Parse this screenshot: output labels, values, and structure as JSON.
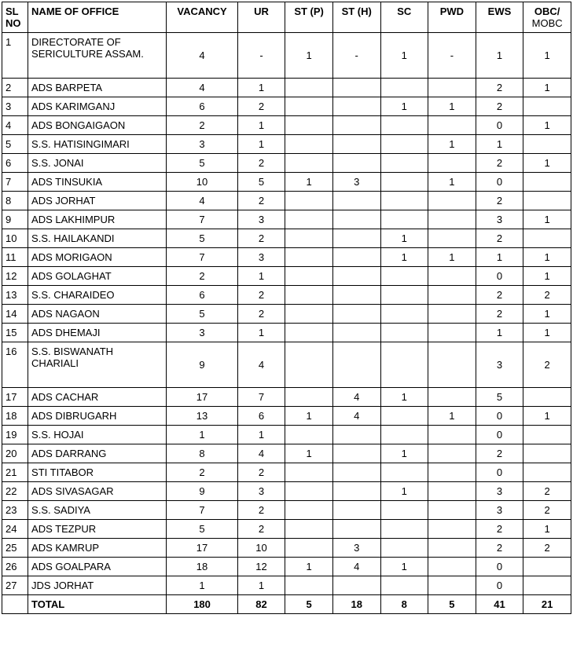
{
  "table": {
    "columns": [
      {
        "key": "sl",
        "label": "SL NO",
        "class": "col-sl",
        "align": "left"
      },
      {
        "key": "name",
        "label": "NAME OF OFFICE",
        "class": "col-name",
        "align": "left"
      },
      {
        "key": "vacancy",
        "label": "VACANCY",
        "class": "col-vac",
        "align": "center"
      },
      {
        "key": "ur",
        "label": "UR",
        "class": "col-ur",
        "align": "center"
      },
      {
        "key": "stp",
        "label": "ST (P)",
        "class": "col-stp",
        "align": "center"
      },
      {
        "key": "sth",
        "label": "ST (H)",
        "class": "col-sth",
        "align": "center"
      },
      {
        "key": "sc",
        "label": "SC",
        "class": "col-sc",
        "align": "center"
      },
      {
        "key": "pwd",
        "label": "PWD",
        "class": "col-pwd",
        "align": "center"
      },
      {
        "key": "ews",
        "label": "EWS",
        "class": "col-ews",
        "align": "center"
      },
      {
        "key": "obc",
        "label": "OBC/",
        "sub": "MOBC",
        "class": "col-obc",
        "align": "center"
      }
    ],
    "rows": [
      {
        "sl": "1",
        "name": "DIRECTORATE OF SERICULTURE ASSAM.",
        "vacancy": "4",
        "ur": "-",
        "stp": "1",
        "sth": "-",
        "sc": "1",
        "pwd": "-",
        "ews": "1",
        "obc": "1",
        "tall": true
      },
      {
        "sl": "2",
        "name": "ADS BARPETA",
        "vacancy": "4",
        "ur": "1",
        "stp": "",
        "sth": "",
        "sc": "",
        "pwd": "",
        "ews": "2",
        "obc": "1"
      },
      {
        "sl": "3",
        "name": "ADS KARIMGANJ",
        "vacancy": "6",
        "ur": "2",
        "stp": "",
        "sth": "",
        "sc": "1",
        "pwd": "1",
        "ews": "2",
        "obc": ""
      },
      {
        "sl": "4",
        "name": "ADS BONGAIGAON",
        "vacancy": "2",
        "ur": "1",
        "stp": "",
        "sth": "",
        "sc": "",
        "pwd": "",
        "ews": "0",
        "obc": "1"
      },
      {
        "sl": "5",
        "name": "S.S. HATISINGIMARI",
        "vacancy": "3",
        "ur": "1",
        "stp": "",
        "sth": "",
        "sc": "",
        "pwd": "1",
        "ews": "1",
        "obc": ""
      },
      {
        "sl": "6",
        "name": "S.S. JONAI",
        "vacancy": "5",
        "ur": "2",
        "stp": "",
        "sth": "",
        "sc": "",
        "pwd": "",
        "ews": "2",
        "obc": "1"
      },
      {
        "sl": "7",
        "name": "ADS TINSUKIA",
        "vacancy": "10",
        "ur": "5",
        "stp": "1",
        "sth": "3",
        "sc": "",
        "pwd": "1",
        "ews": "0",
        "obc": ""
      },
      {
        "sl": "8",
        "name": "ADS JORHAT",
        "vacancy": "4",
        "ur": "2",
        "stp": "",
        "sth": "",
        "sc": "",
        "pwd": "",
        "ews": "2",
        "obc": ""
      },
      {
        "sl": "9",
        "name": "ADS LAKHIMPUR",
        "vacancy": "7",
        "ur": "3",
        "stp": "",
        "sth": "",
        "sc": "",
        "pwd": "",
        "ews": "3",
        "obc": "1"
      },
      {
        "sl": "10",
        "name": "S.S. HAILAKANDI",
        "vacancy": "5",
        "ur": "2",
        "stp": "",
        "sth": "",
        "sc": "1",
        "pwd": "",
        "ews": "2",
        "obc": ""
      },
      {
        "sl": "11",
        "name": "ADS MORIGAON",
        "vacancy": "7",
        "ur": "3",
        "stp": "",
        "sth": "",
        "sc": "1",
        "pwd": "1",
        "ews": "1",
        "obc": "1"
      },
      {
        "sl": "12",
        "name": "ADS GOLAGHAT",
        "vacancy": "2",
        "ur": "1",
        "stp": "",
        "sth": "",
        "sc": "",
        "pwd": "",
        "ews": "0",
        "obc": "1"
      },
      {
        "sl": "13",
        "name": "S.S. CHARAIDEO",
        "vacancy": "6",
        "ur": "2",
        "stp": "",
        "sth": "",
        "sc": "",
        "pwd": "",
        "ews": "2",
        "obc": "2"
      },
      {
        "sl": "14",
        "name": "ADS NAGAON",
        "vacancy": "5",
        "ur": "2",
        "stp": "",
        "sth": "",
        "sc": "",
        "pwd": "",
        "ews": "2",
        "obc": "1"
      },
      {
        "sl": "15",
        "name": "ADS DHEMAJI",
        "vacancy": "3",
        "ur": "1",
        "stp": "",
        "sth": "",
        "sc": "",
        "pwd": "",
        "ews": "1",
        "obc": "1"
      },
      {
        "sl": "16",
        "name": "S.S. BISWANATH CHARIALI",
        "vacancy": "9",
        "ur": "4",
        "stp": "",
        "sth": "",
        "sc": "",
        "pwd": "",
        "ews": "3",
        "obc": "2",
        "tall": true
      },
      {
        "sl": "17",
        "name": "ADS CACHAR",
        "vacancy": "17",
        "ur": "7",
        "stp": "",
        "sth": "4",
        "sc": "1",
        "pwd": "",
        "ews": "5",
        "obc": ""
      },
      {
        "sl": "18",
        "name": "ADS DIBRUGARH",
        "vacancy": "13",
        "ur": "6",
        "stp": "1",
        "sth": "4",
        "sc": "",
        "pwd": "1",
        "ews": "0",
        "obc": "1"
      },
      {
        "sl": "19",
        "name": "S.S. HOJAI",
        "vacancy": "1",
        "ur": "1",
        "stp": "",
        "sth": "",
        "sc": "",
        "pwd": "",
        "ews": "0",
        "obc": ""
      },
      {
        "sl": "20",
        "name": "ADS DARRANG",
        "vacancy": "8",
        "ur": "4",
        "stp": "1",
        "sth": "",
        "sc": "1",
        "pwd": "",
        "ews": "2",
        "obc": ""
      },
      {
        "sl": "21",
        "name": "STI TITABOR",
        "vacancy": "2",
        "ur": "2",
        "stp": "",
        "sth": "",
        "sc": "",
        "pwd": "",
        "ews": "0",
        "obc": ""
      },
      {
        "sl": "22",
        "name": "ADS SIVASAGAR",
        "vacancy": "9",
        "ur": "3",
        "stp": "",
        "sth": "",
        "sc": "1",
        "pwd": "",
        "ews": "3",
        "obc": "2"
      },
      {
        "sl": "23",
        "name": "S.S. SADIYA",
        "vacancy": "7",
        "ur": "2",
        "stp": "",
        "sth": "",
        "sc": "",
        "pwd": "",
        "ews": "3",
        "obc": "2"
      },
      {
        "sl": "24",
        "name": "ADS TEZPUR",
        "vacancy": "5",
        "ur": "2",
        "stp": "",
        "sth": "",
        "sc": "",
        "pwd": "",
        "ews": "2",
        "obc": "1"
      },
      {
        "sl": "25",
        "name": "ADS KAMRUP",
        "vacancy": "17",
        "ur": "10",
        "stp": "",
        "sth": "3",
        "sc": "",
        "pwd": "",
        "ews": "2",
        "obc": "2"
      },
      {
        "sl": "26",
        "name": "ADS GOALPARA",
        "vacancy": "18",
        "ur": "12",
        "stp": "1",
        "sth": "4",
        "sc": "1",
        "pwd": "",
        "ews": "0",
        "obc": ""
      },
      {
        "sl": "27",
        "name": "JDS JORHAT",
        "vacancy": "1",
        "ur": "1",
        "stp": "",
        "sth": "",
        "sc": "",
        "pwd": "",
        "ews": "0",
        "obc": ""
      }
    ],
    "total": {
      "label": "TOTAL",
      "vacancy": "180",
      "ur": "82",
      "stp": "5",
      "sth": "18",
      "sc": "8",
      "pwd": "5",
      "ews": "41",
      "obc": "21"
    }
  }
}
